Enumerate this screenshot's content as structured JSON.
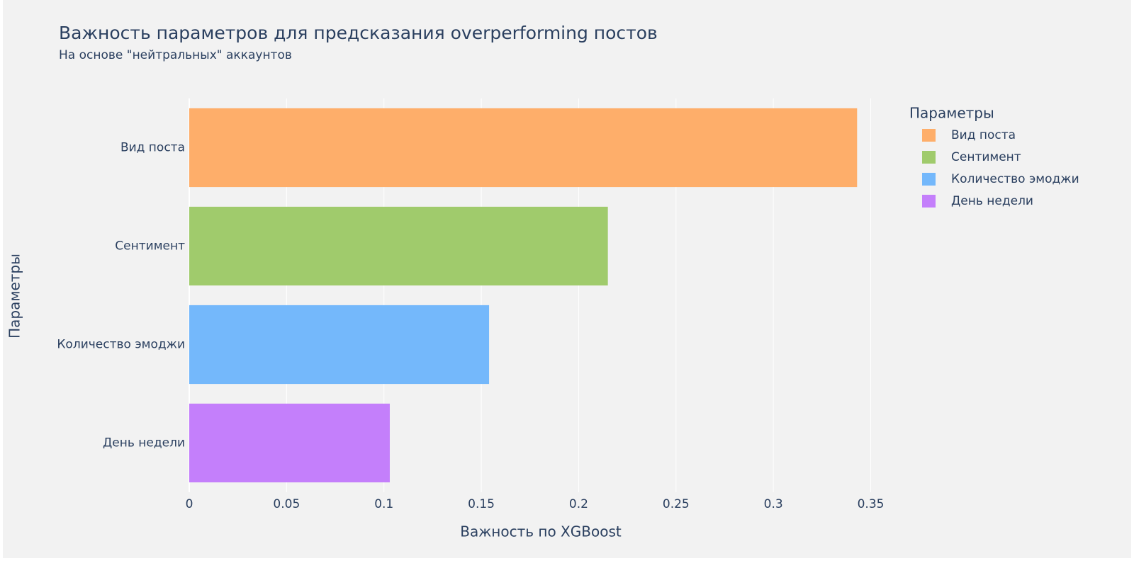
{
  "chart_data": {
    "type": "bar",
    "orientation": "horizontal",
    "title": "Важность параметров для предсказания overperforming постов",
    "subtitle": "На основе \"нейтральных\" аккаунтов",
    "x_label": "Важность по XGBoost",
    "y_label": "Параметры",
    "legend_title": "Параметры",
    "legend_position": "right",
    "categories": [
      "Вид поста",
      "Сентимент",
      "Количество эмоджи",
      "День недели"
    ],
    "values": [
      0.343,
      0.215,
      0.154,
      0.103
    ],
    "colors": [
      "#FEAE6A",
      "#A0CB6C",
      "#74B8FB",
      "#C47FFB"
    ],
    "xlim": [
      0,
      0.36
    ],
    "xticks": [
      0,
      0.05,
      0.1,
      0.15,
      0.2,
      0.25,
      0.3,
      0.35
    ],
    "grid": true
  }
}
